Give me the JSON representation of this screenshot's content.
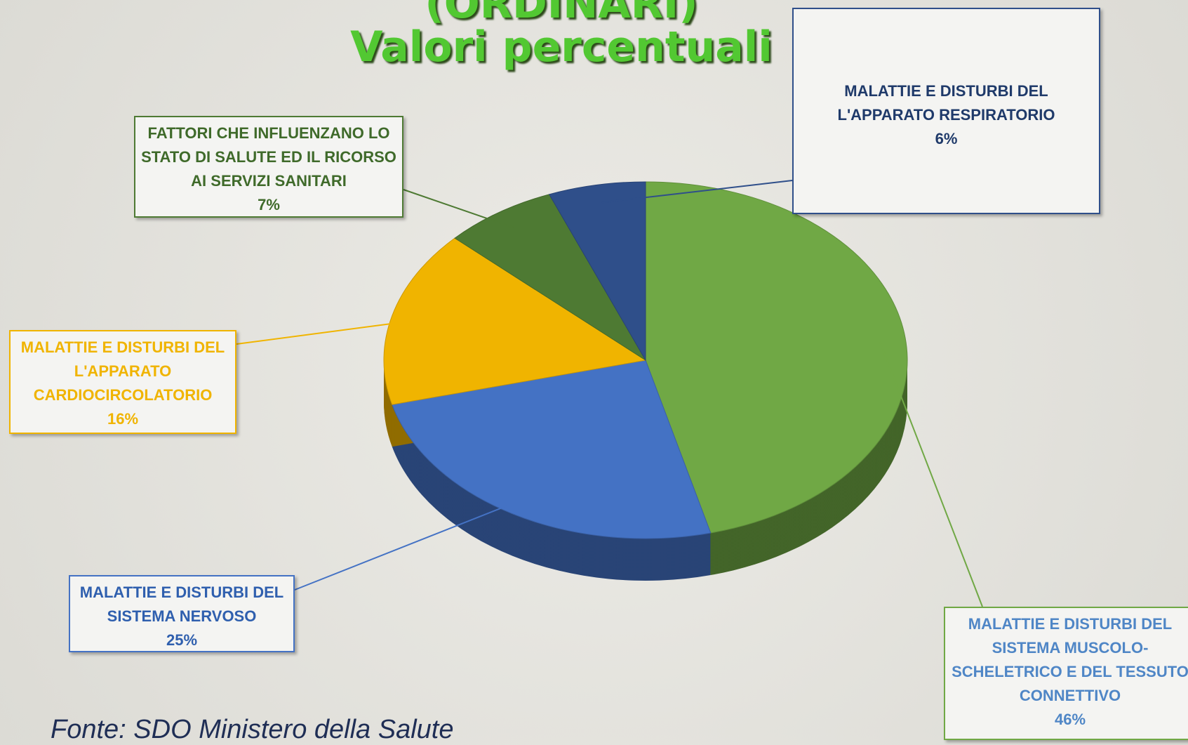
{
  "chart_data": {
    "type": "pie",
    "title": "(ORDINARI)",
    "subtitle": "Valori percentuali",
    "source": "Fonte: SDO Ministero della Salute",
    "categories": [
      "MALATTIE E DISTURBI DEL SISTEMA MUSCOLO-SCHELETRICO E DEL TESSUTO CONNETTIVO",
      "MALATTIE E DISTURBI DEL SISTEMA NERVOSO",
      "MALATTIE E DISTURBI DEL L'APPARATO CARDIOCIRCOLATORIO",
      "FATTORI CHE INFLUENZANO LO STATO DI SALUTE ED IL RICORSO AI SERVIZI SANITARI",
      "MALATTIE E DISTURBI DEL L'APPARATO RESPIRATORIO"
    ],
    "values": [
      46,
      25,
      16,
      7,
      6
    ],
    "value_labels": [
      "46%",
      "25%",
      "16%",
      "7%",
      "6%"
    ],
    "colors": [
      "#70a845",
      "#4472c4",
      "#f0b400",
      "#4e7a33",
      "#2f4f8a"
    ]
  }
}
